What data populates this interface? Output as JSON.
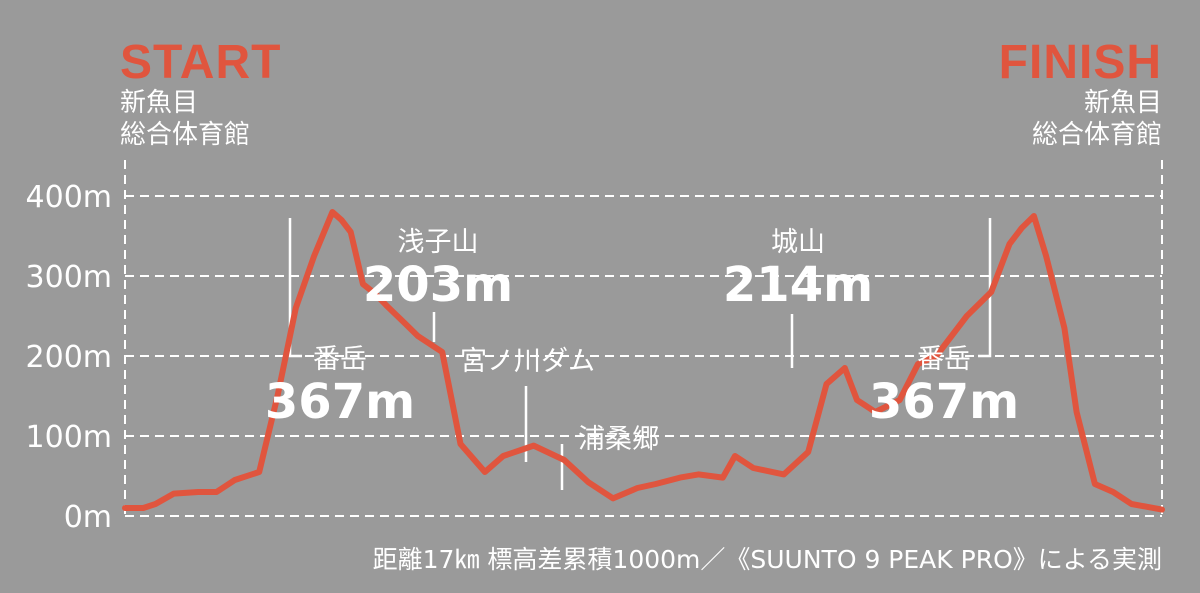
{
  "start": {
    "title": "START",
    "place_line1": "新魚目",
    "place_line2": "総合体育館"
  },
  "finish": {
    "title": "FINISH",
    "place_line1": "新魚目",
    "place_line2": "総合体育館"
  },
  "footnote": "距離17㎞ 標高差累積1000m／《SUUNTO 9 PEAK PRO》による実測",
  "colors": {
    "background": "#9a9a9a",
    "line": "#e0553e",
    "text": "#ffffff",
    "grid": "#ffffff"
  },
  "chart_data": {
    "type": "line",
    "title": "",
    "xlabel": "",
    "ylabel": "",
    "x_unit": "km",
    "xlim": [
      0,
      17
    ],
    "ylim": [
      0,
      400
    ],
    "y_ticks": [
      {
        "value": 0,
        "label": "0m"
      },
      {
        "value": 100,
        "label": "100m"
      },
      {
        "value": 200,
        "label": "200m"
      },
      {
        "value": 300,
        "label": "300m"
      },
      {
        "value": 400,
        "label": "400m"
      }
    ],
    "grid": "horizontal-dashed",
    "series": [
      {
        "x": [
          0,
          0.3,
          0.5,
          0.8,
          1.2,
          1.5,
          1.8,
          2.2,
          2.5,
          2.8,
          3.1,
          3.4,
          3.55,
          3.7,
          3.9,
          4.1,
          4.3,
          4.6,
          4.8,
          5.2,
          5.5,
          5.9,
          6.2,
          6.7,
          7.2,
          7.6,
          8.0,
          8.4,
          8.7,
          9.1,
          9.4,
          9.8,
          10.0,
          10.3,
          10.8,
          11.2,
          11.5,
          11.8,
          12.0,
          12.3,
          12.7,
          13.0,
          13.3,
          13.8,
          14.2,
          14.5,
          14.7,
          14.9,
          15.1,
          15.4,
          15.6,
          15.9,
          16.2,
          16.5,
          17.0
        ],
        "y": [
          10,
          10,
          15,
          28,
          30,
          30,
          45,
          55,
          150,
          260,
          325,
          380,
          370,
          355,
          290,
          278,
          262,
          240,
          225,
          205,
          90,
          55,
          75,
          88,
          70,
          42,
          22,
          35,
          40,
          48,
          52,
          48,
          75,
          60,
          52,
          80,
          165,
          185,
          145,
          130,
          145,
          190,
          200,
          250,
          280,
          340,
          360,
          375,
          325,
          235,
          130,
          40,
          30,
          15,
          8
        ]
      }
    ],
    "annotations": [
      {
        "name": "番岳",
        "value": "367m",
        "x": 3.4,
        "y": 367
      },
      {
        "name": "浅子山",
        "value": "203m",
        "x": 5.3,
        "y": 203
      },
      {
        "name": "宮ノ川ダム",
        "value": "",
        "x": 7.0,
        "y": 70
      },
      {
        "name": "浦桑郷",
        "value": "",
        "x": 7.7,
        "y": 22
      },
      {
        "name": "城山",
        "value": "214m",
        "x": 11.8,
        "y": 185
      },
      {
        "name": "番岳",
        "value": "367m",
        "x": 15.1,
        "y": 367
      }
    ]
  }
}
